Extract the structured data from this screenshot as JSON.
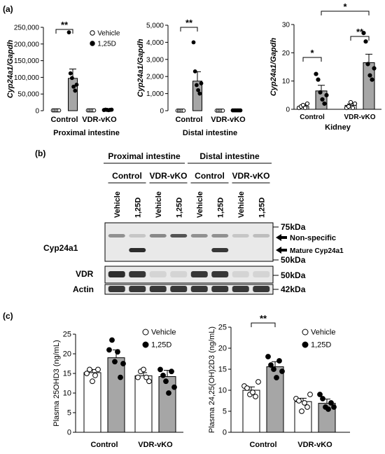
{
  "panel_labels": [
    "(a)",
    "(b)",
    "(c)"
  ],
  "legend": {
    "vehicle": "Vehicle",
    "treated": "1,25D"
  },
  "colors": {
    "vehicle_bar": "#ffffff",
    "treated_bar": "#a6a6a6",
    "axis": "#000000"
  },
  "chart_data": [
    {
      "type": "bar",
      "panel": "a",
      "ylabel": "Cyp24a1/Gapdh",
      "xlabel": "Proximal intestine",
      "categories": [
        "Control",
        "VDR-vKO"
      ],
      "ylim": [
        0,
        250000
      ],
      "yticks": [
        "0",
        "50,000",
        "100,000",
        "150,000",
        "200,000",
        "250,000"
      ],
      "series": [
        {
          "name": "Vehicle",
          "values": [
            1000,
            1000
          ],
          "errors": [
            200,
            200
          ],
          "points": [
            [
              1000,
              1000,
              1000,
              1000,
              1000
            ],
            [
              1000,
              1000,
              1000,
              1000,
              1000
            ]
          ]
        },
        {
          "name": "1,25D",
          "values": [
            97000,
            2500
          ],
          "errors": [
            28000,
            500
          ],
          "points": [
            [
              235000,
              112000,
              98000,
              72000,
              60000,
              78000
            ],
            [
              2000,
              3000,
              2500,
              1500,
              2500,
              3000
            ]
          ]
        }
      ],
      "significance": [
        {
          "label": "**",
          "group": 0
        }
      ]
    },
    {
      "type": "bar",
      "panel": "a",
      "ylabel": "Cyp24a1/Gapdh",
      "xlabel": "Distal intestine",
      "categories": [
        "Control",
        "VDR-vKO"
      ],
      "ylim": [
        0,
        5000
      ],
      "yticks": [
        "0",
        "1,000",
        "2,000",
        "3,000",
        "4,000",
        "5,000"
      ],
      "series": [
        {
          "name": "Vehicle",
          "values": [
            5,
            5
          ],
          "errors": [
            2,
            2
          ],
          "points": [
            [
              5,
              5,
              5,
              5,
              5
            ],
            [
              5,
              5,
              5,
              5,
              5
            ]
          ]
        },
        {
          "name": "1,25D",
          "values": [
            1730,
            20
          ],
          "errors": [
            550,
            5
          ],
          "points": [
            [
              4000,
              2300,
              1500,
              1200,
              1000,
              1600
            ],
            [
              20,
              20,
              20,
              20,
              20,
              20
            ]
          ]
        }
      ],
      "significance": [
        {
          "label": "**",
          "group": 0
        }
      ]
    },
    {
      "type": "bar",
      "panel": "a",
      "ylabel": "Cyp24a1/Gapdh",
      "xlabel": "Kidney",
      "categories": [
        "Control",
        "VDR-vKO"
      ],
      "ylim": [
        0,
        30
      ],
      "yticks": [
        "0",
        "10",
        "20",
        "30"
      ],
      "series": [
        {
          "name": "Vehicle",
          "values": [
            1.0,
            1.4
          ],
          "errors": [
            0.4,
            0.5
          ],
          "points": [
            [
              0.5,
              1.0,
              1.5,
              0.5,
              2.0
            ],
            [
              0.5,
              1.0,
              2.5,
              0.5,
              2.0
            ]
          ]
        },
        {
          "name": "1,25D",
          "values": [
            6.5,
            16.5
          ],
          "errors": [
            2.0,
            3.0
          ],
          "points": [
            [
              12.5,
              10.5,
              6.0,
              3.5,
              2.0,
              5.0
            ],
            [
              27.0,
              24.0,
              16.0,
              12.0,
              10.5,
              14.5
            ]
          ]
        }
      ],
      "significance": [
        {
          "label": "*",
          "group": 0
        },
        {
          "label": "**",
          "group": 1
        },
        {
          "label": "*",
          "between": "treated"
        }
      ]
    },
    {
      "type": "bar",
      "panel": "c",
      "ylabel": "Plasma 25OHD3 (ng/mL)",
      "categories": [
        "Control",
        "VDR-vKO"
      ],
      "ylim": [
        0,
        25
      ],
      "yticks": [
        "0",
        "5",
        "10",
        "15",
        "20",
        "25"
      ],
      "series": [
        {
          "name": "Vehicle",
          "values": [
            15.2,
            14.4
          ],
          "errors": [
            0.8,
            0.8
          ],
          "points": [
            [
              15.0,
              16.0,
              13.0,
              14.5,
              16.0
            ],
            [
              14.0,
              15.5,
              16.0,
              14.0,
              13.0
            ]
          ]
        },
        {
          "name": "1,25D",
          "values": [
            19.0,
            14.2
          ],
          "errors": [
            2.0,
            1.6
          ],
          "points": [
            [
              21.0,
              23.5,
              18.0,
              20.5,
              14.0,
              17.5
            ],
            [
              16.0,
              14.5,
              13.0,
              10.0,
              15.5,
              11.5
            ]
          ]
        }
      ]
    },
    {
      "type": "bar",
      "panel": "c",
      "ylabel": "Plasma 24,25(OH)2D3 (ng/mL)",
      "categories": [
        "Control",
        "VDR-vKO"
      ],
      "ylim": [
        0,
        25
      ],
      "yticks": [
        "0",
        "5",
        "10",
        "15",
        "20",
        "25"
      ],
      "series": [
        {
          "name": "Vehicle",
          "values": [
            10.0,
            7.3
          ],
          "errors": [
            0.8,
            0.8
          ],
          "points": [
            [
              11.0,
              10.5,
              9.0,
              9.5,
              8.5,
              12.0
            ],
            [
              8.0,
              7.5,
              5.0,
              7.0,
              6.0,
              9.0
            ]
          ]
        },
        {
          "name": "1,25D",
          "values": [
            15.6,
            6.9
          ],
          "errors": [
            1.2,
            1.0
          ],
          "points": [
            [
              18.0,
              16.0,
              15.0,
              13.0,
              17.0,
              14.5
            ],
            [
              9.0,
              8.0,
              6.0,
              5.5,
              7.0,
              6.0
            ]
          ]
        }
      ],
      "significance": [
        {
          "label": "**",
          "group": 0
        }
      ]
    }
  ],
  "blot": {
    "groups": [
      "Proximal intestine",
      "Distal intestine"
    ],
    "subgroups": [
      "Control",
      "VDR-vKO",
      "Control",
      "VDR-vKO"
    ],
    "lanes": [
      "Vehicle",
      "1,25D",
      "Vehicle",
      "1,25D",
      "Vehicle",
      "1,25D",
      "Vehicle",
      "1,25D"
    ],
    "rows": [
      "Cyp24a1",
      "VDR",
      "Actin"
    ],
    "markers": [
      "75kDa",
      "50kDa",
      "50kDa",
      "42kDa"
    ],
    "arrows": [
      "Non-specific",
      "Mature Cyp24a1"
    ],
    "bands": {
      "cyp_nonspecific": [
        0.5,
        0.2,
        0.55,
        0.85,
        0.5,
        0.5,
        0.2,
        0.25
      ],
      "cyp_mature": [
        0,
        0.95,
        0,
        0,
        0,
        0.9,
        0,
        0
      ],
      "vdr": [
        0.95,
        0.9,
        0.1,
        0.1,
        0.9,
        0.9,
        0.1,
        0.1
      ],
      "actin": [
        0.9,
        0.9,
        0.9,
        0.9,
        0.9,
        0.9,
        0.9,
        0.9
      ]
    }
  }
}
